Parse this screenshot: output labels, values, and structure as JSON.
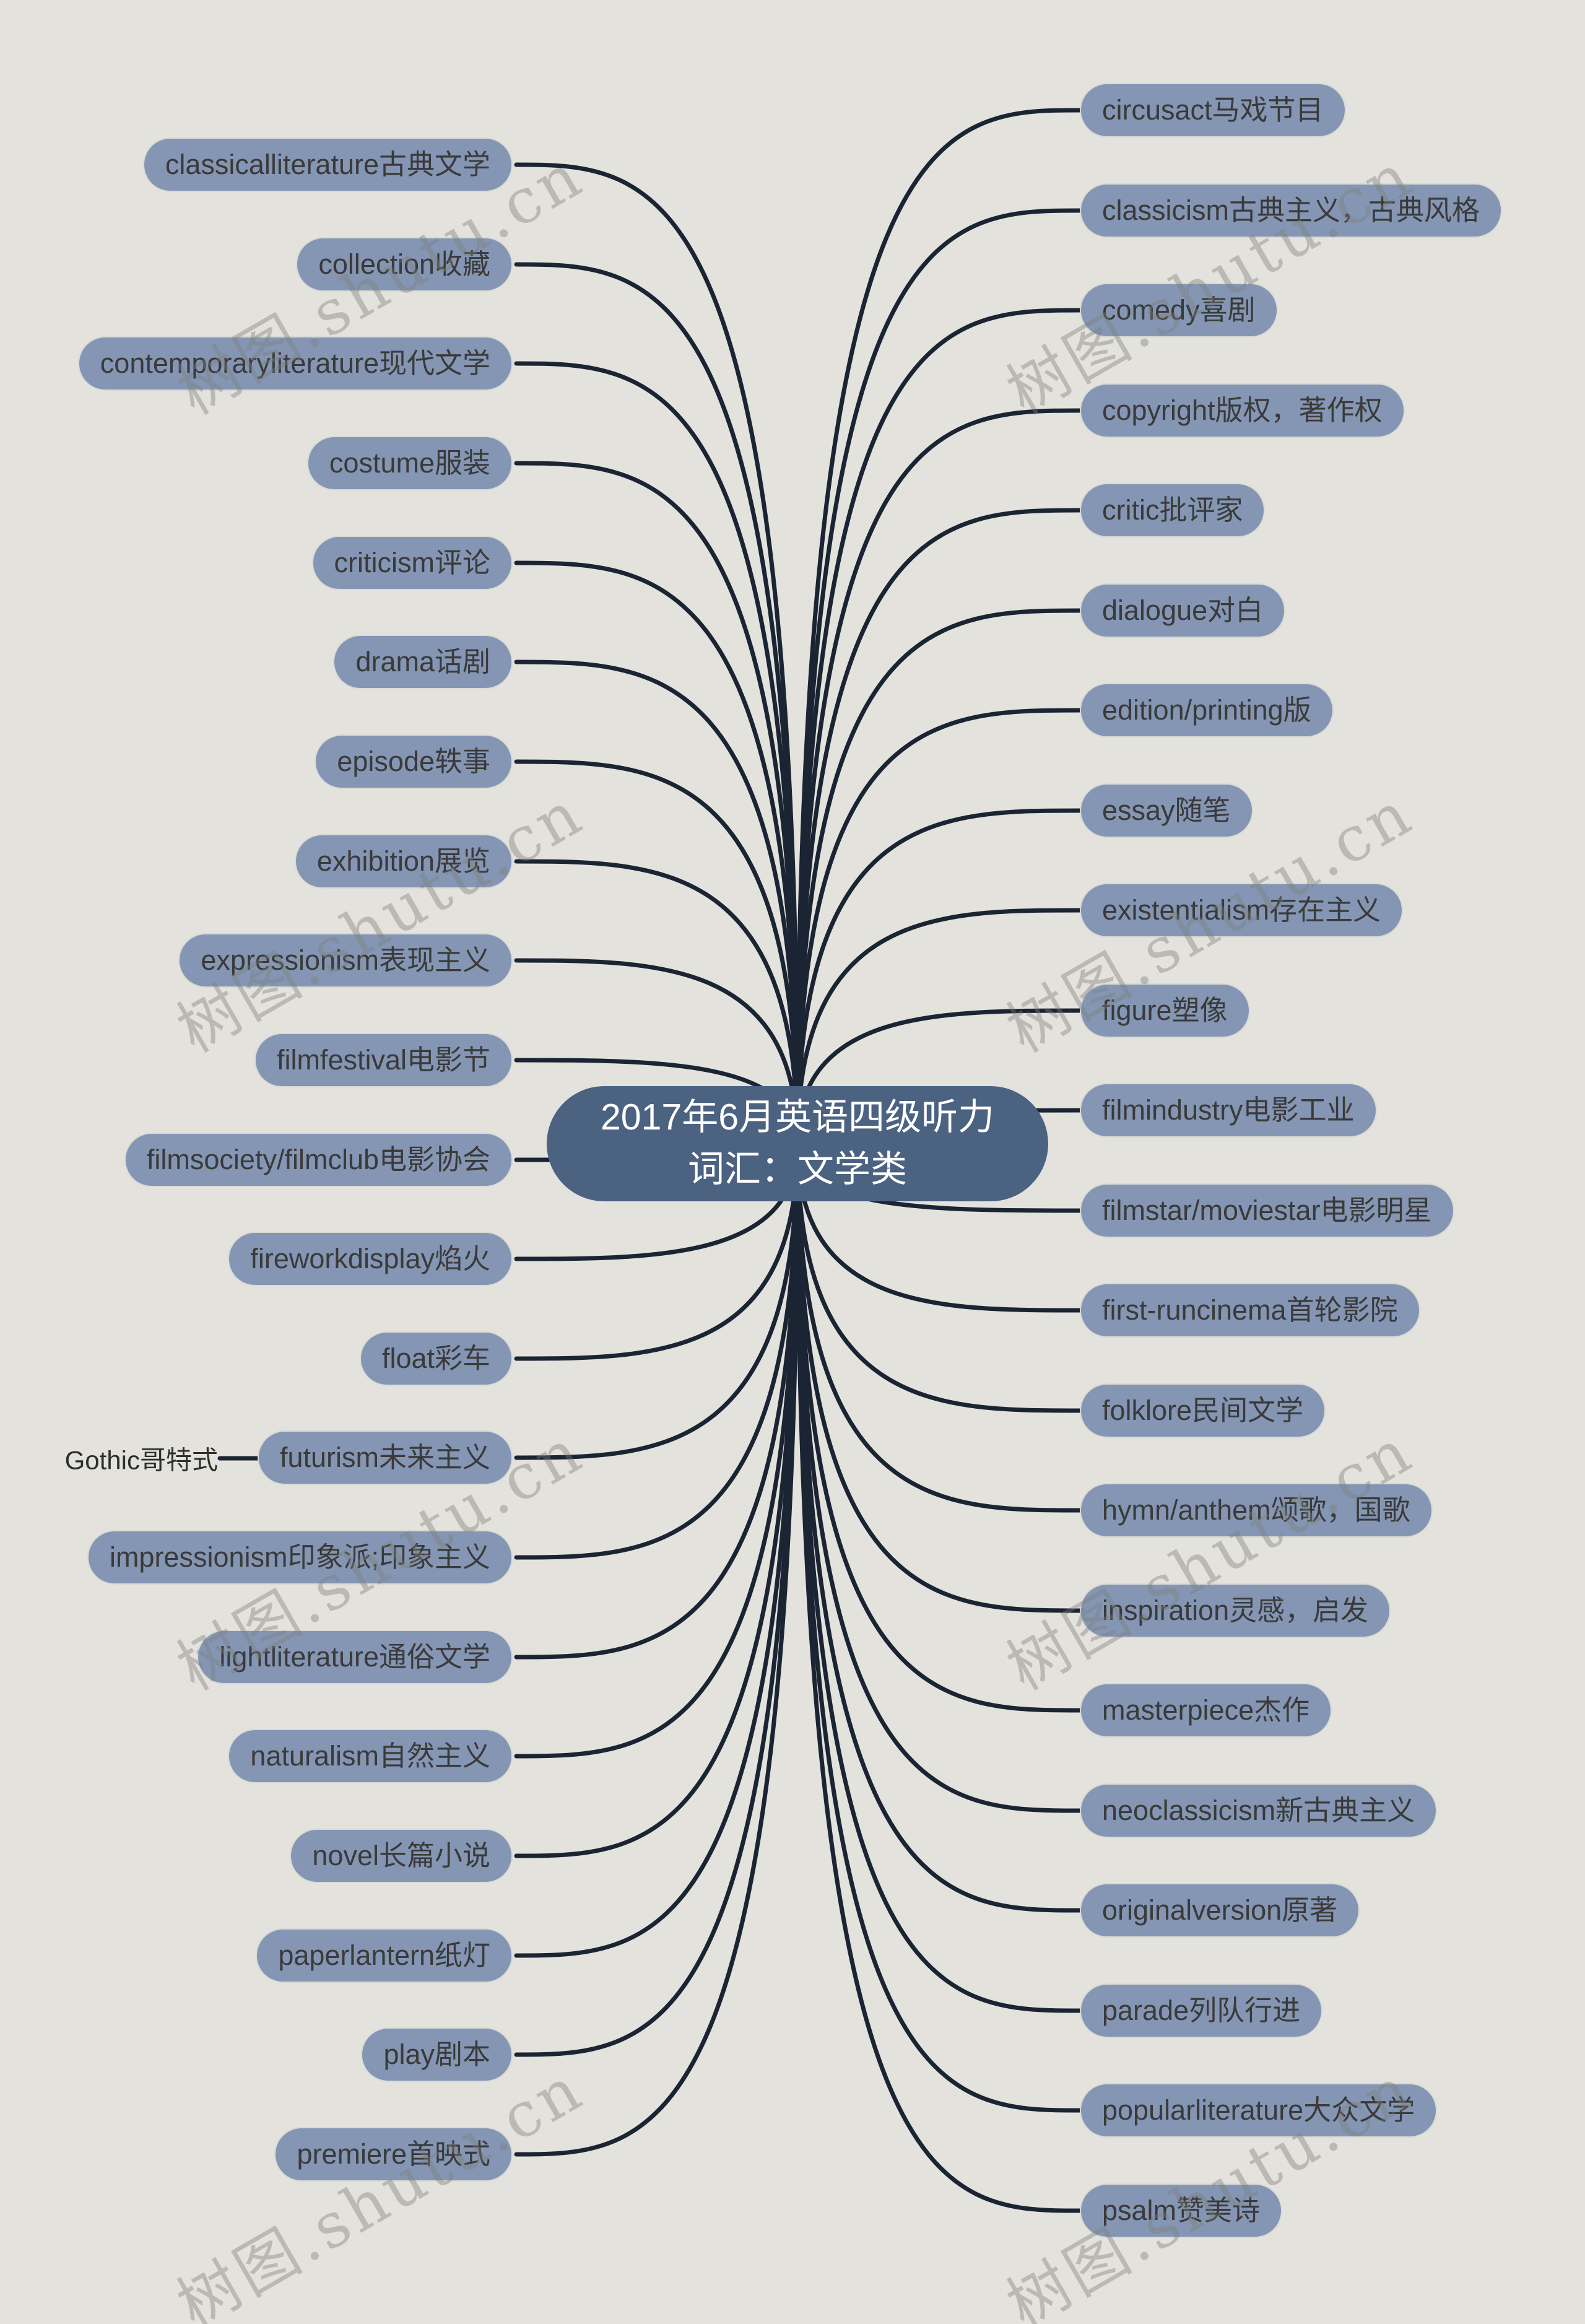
{
  "central": {
    "line1": "2017年6月英语四级听力",
    "line2": "词汇：文学类"
  },
  "gothic": {
    "label": "Gothic哥特式",
    "parent": "futurism未来主义"
  },
  "watermark": {
    "text": "树图.shutu.cn"
  },
  "left_branches": [
    "classicalliterature古典文学",
    "collection收藏",
    "contemporaryliterature现代文学",
    "costume服装",
    "criticism评论",
    "drama话剧",
    "episode轶事",
    "exhibition展览",
    "expressionism表现主义",
    "filmfestival电影节",
    "filmsociety/filmclub电影协会",
    "fireworkdisplay焰火",
    "float彩车",
    "futurism未来主义",
    "impressionism印象派;印象主义",
    "lightliterature通俗文学",
    "naturalism自然主义",
    "novel长篇小说",
    "paperlantern纸灯",
    "play剧本",
    "premiere首映式"
  ],
  "right_branches": [
    "circusact马戏节目",
    "classicism古典主义，古典风格",
    "comedy喜剧",
    "copyright版权，著作权",
    "critic批评家",
    "dialogue对白",
    "edition/printing版",
    "essay随笔",
    "existentialism存在主义",
    "figure塑像",
    "filmindustry电影工业",
    "filmstar/moviestar电影明星",
    "first-runcinema首轮影院",
    "folklore民间文学",
    "hymn/anthem颂歌，国歌",
    "inspiration灵感，启发",
    "masterpiece杰作",
    "neoclassicism新古典主义",
    "originalversion原著",
    "parade列队行进",
    "popularliterature大众文学",
    "psalm赞美诗"
  ],
  "colors": {
    "background": "#e3e2dd",
    "node_fill": "#8496b4",
    "node_border": "#d8dad4",
    "node_text": "#3a3a3a",
    "central_fill": "#4b6281",
    "central_text": "#ffffff",
    "connector": "#1b2433",
    "watermark": "#7d7d78"
  }
}
